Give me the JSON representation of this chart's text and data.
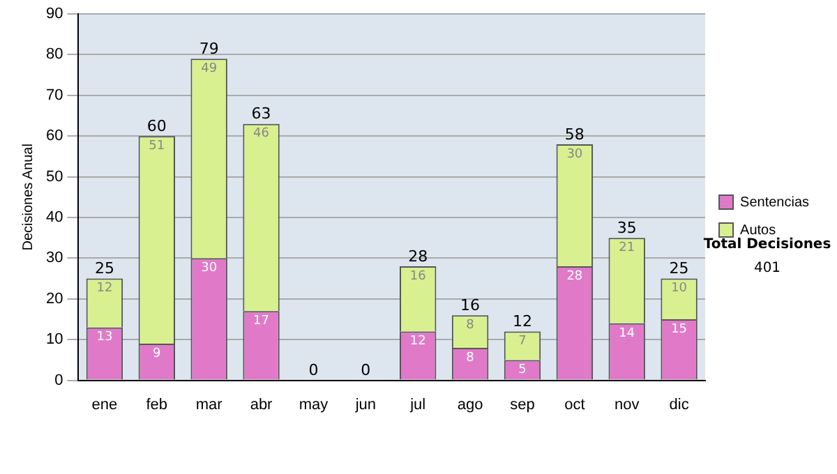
{
  "chart_data": {
    "type": "bar",
    "stacked": true,
    "ylabel": "Decisiones Anual",
    "categories": [
      "ene",
      "feb",
      "mar",
      "abr",
      "may",
      "jun",
      "jul",
      "ago",
      "sep",
      "oct",
      "nov",
      "dic"
    ],
    "series": [
      {
        "name": "Sentencias",
        "color": "#e07ac8",
        "values": [
          13,
          9,
          30,
          17,
          0,
          0,
          12,
          8,
          5,
          28,
          14,
          15
        ],
        "value_labels": [
          "13",
          "9",
          "30",
          "17",
          null,
          null,
          "12",
          "8",
          "5",
          "28",
          "14",
          "15"
        ]
      },
      {
        "name": "Autos",
        "color": "#d8f090",
        "values": [
          12,
          51,
          49,
          46,
          0,
          0,
          16,
          8,
          7,
          30,
          21,
          10
        ],
        "value_labels": [
          "12",
          "51",
          "49",
          "46",
          null,
          null,
          "16",
          "8",
          "7",
          "30",
          "21",
          "10"
        ]
      }
    ],
    "totals": [
      "25",
      "60",
      "79",
      "63",
      "0",
      "0",
      "28",
      "16",
      "12",
      "58",
      "35",
      "25"
    ],
    "ylim": [
      0,
      90
    ],
    "yticks": [
      0,
      10,
      20,
      30,
      40,
      50,
      60,
      70,
      80,
      90
    ],
    "grid": "y",
    "legend": "right",
    "annotations": [
      "Total Decisiones",
      "401"
    ]
  }
}
